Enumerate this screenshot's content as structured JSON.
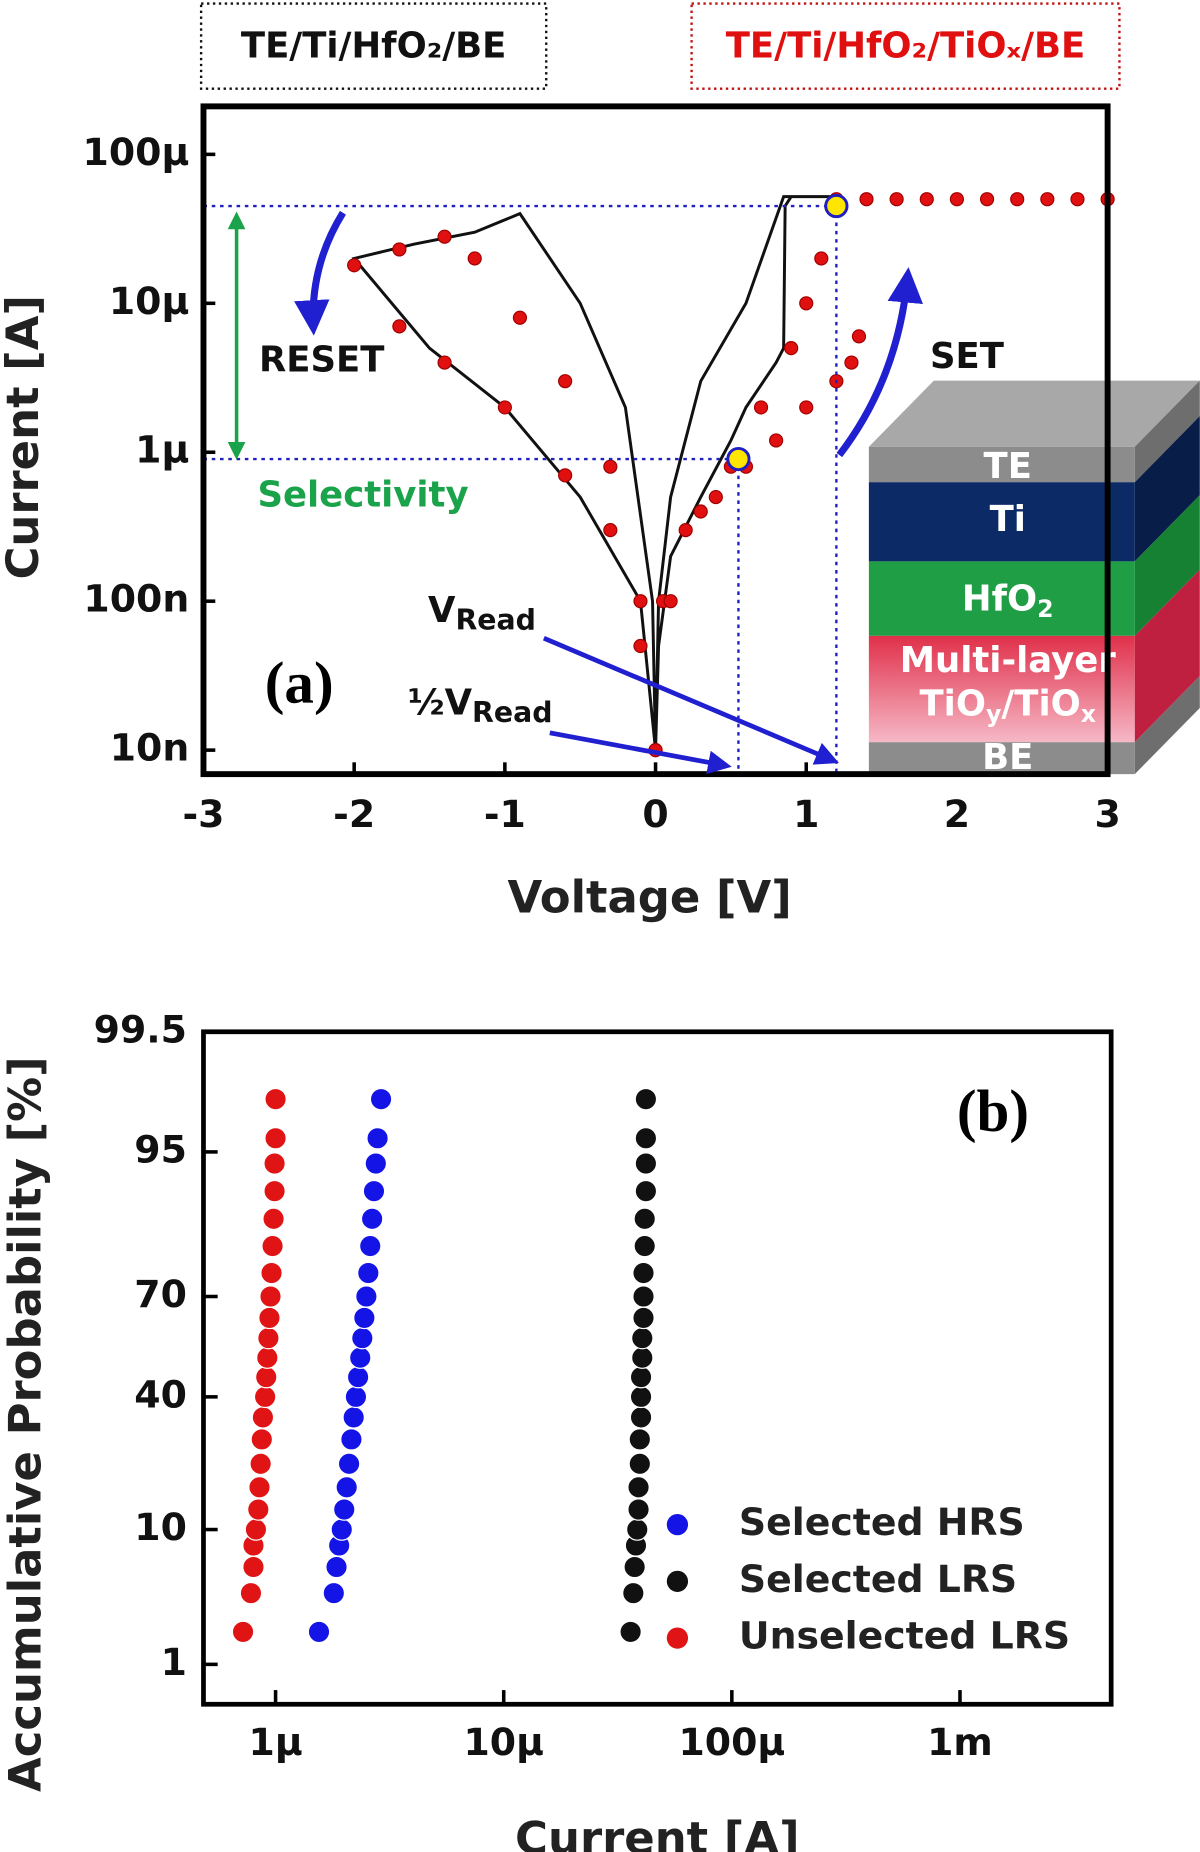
{
  "chart_data": [
    {
      "type": "line",
      "log_y": true,
      "x_label": "Voltage [V]",
      "y_label": "Current [A]",
      "xlim": [
        -3,
        3
      ],
      "xticks": [
        -3,
        -2,
        -1,
        0,
        1,
        2,
        3
      ],
      "ylim": [
        6.9e-09,
        0.00021
      ],
      "yticks": [
        {
          "value": 1e-08,
          "label": "10n"
        },
        {
          "value": 1e-07,
          "label": "100n"
        },
        {
          "value": 1e-06,
          "label": "1μ"
        },
        {
          "value": 1e-05,
          "label": "10μ"
        },
        {
          "value": 0.0001,
          "label": "100μ"
        }
      ],
      "series": [
        {
          "name": "TE/Ti/HfO₂/BE",
          "color": "#111111",
          "style": "line",
          "x": [
            0,
            0.02,
            0.1,
            0.3,
            0.5,
            0.6,
            0.8,
            0.85,
            0.86,
            0.9,
            1.2,
            0.85,
            0.6,
            0.3,
            0.1,
            0.02,
            0,
            -0.02,
            -0.2,
            -0.5,
            -0.9,
            -1.2,
            -1.6,
            -2,
            -1.5,
            -1,
            -0.5,
            -0.1,
            0
          ],
          "values": [
            1e-08,
            5e-08,
            2e-07,
            5e-07,
            1.2e-06,
            2e-06,
            4e-06,
            5e-06,
            4.5e-05,
            5.2e-05,
            5.2e-05,
            5.2e-05,
            1e-05,
            3e-06,
            5e-07,
            1e-07,
            1e-08,
            1e-07,
            2e-06,
            1e-05,
            4e-05,
            3e-05,
            2.5e-05,
            2e-05,
            5e-06,
            2e-06,
            5e-07,
            1e-07,
            1e-08
          ]
        },
        {
          "name": "TE/Ti/HfO₂/TiOₓ/BE",
          "color": "#e01010",
          "style": "markers",
          "x": [
            0,
            0.05,
            0.2,
            0.4,
            0.6,
            0.8,
            1.0,
            1.2,
            1.3,
            1.35,
            1.2,
            1.1,
            1.0,
            0.9,
            0.7,
            0.5,
            0.3,
            0.1,
            1.4,
            1.6,
            1.8,
            2.0,
            2.2,
            2.4,
            2.6,
            2.8,
            3.0,
            -0.1,
            -0.3,
            -0.6,
            -0.9,
            -1.2,
            -1.4,
            -1.7,
            -2,
            -1.7,
            -1.4,
            -1,
            -0.6,
            -0.3,
            -0.1,
            0
          ],
          "values": [
            1e-08,
            1e-07,
            3e-07,
            5e-07,
            8e-07,
            1.2e-06,
            2e-06,
            3e-06,
            4e-06,
            6e-06,
            5e-05,
            2e-05,
            1e-05,
            5e-06,
            2e-06,
            8e-07,
            4e-07,
            1e-07,
            5e-05,
            5e-05,
            5e-05,
            5e-05,
            5e-05,
            5e-05,
            5e-05,
            5e-05,
            5e-05,
            1e-07,
            8e-07,
            3e-06,
            8e-06,
            2e-05,
            2.8e-05,
            2.3e-05,
            1.8e-05,
            7e-06,
            4e-06,
            2e-06,
            7e-07,
            3e-07,
            5e-08,
            1e-08
          ]
        }
      ],
      "highlight_points": {
        "x": [
          1.2,
          0.55
        ],
        "y": [
          4.5e-05,
          9e-07
        ]
      },
      "annotations": {
        "reset": "RESET",
        "set": "SET",
        "selectivity": "Selectivity",
        "panel": "(a)",
        "v_read": [
          "V",
          "Read"
        ],
        "half_v_read": [
          "½V",
          "Read"
        ],
        "stack": [
          [
            "TE"
          ],
          [
            "Ti"
          ],
          [
            "HfO",
            "2"
          ],
          [
            "Multi-layer"
          ],
          [
            "TiO",
            "y",
            "/TiO",
            "x"
          ],
          [
            "BE"
          ]
        ]
      }
    },
    {
      "type": "scatter",
      "log_x": true,
      "probability_y": true,
      "x_label": "Current [A]",
      "y_label": "Accumulative Probability [%]",
      "xlim": [
        4.83e-07,
        0.0046
      ],
      "xticks": [
        {
          "value": 1e-06,
          "label": "1μ"
        },
        {
          "value": 1e-05,
          "label": "10μ"
        },
        {
          "value": 0.0001,
          "label": "100μ"
        },
        {
          "value": 0.001,
          "label": "1m"
        }
      ],
      "ylim": [
        0.42,
        99.5
      ],
      "yticks": [
        1,
        10,
        40,
        70,
        95,
        99.5
      ],
      "annotations": {
        "panel": "(b)"
      },
      "series": [
        {
          "name": "Selected HRS",
          "color": "#1414e6",
          "x": [
            1.55e-06,
            1.8e-06,
            1.85e-06,
            1.9e-06,
            1.95e-06,
            2e-06,
            2.05e-06,
            2.1e-06,
            2.15e-06,
            2.2e-06,
            2.25e-06,
            2.3e-06,
            2.35e-06,
            2.4e-06,
            2.45e-06,
            2.5e-06,
            2.55e-06,
            2.6e-06,
            2.65e-06,
            2.7e-06,
            2.75e-06,
            2.8e-06,
            2.9e-06
          ],
          "values": [
            1.9,
            3.8,
            5.8,
            8,
            10,
            13,
            17,
            22,
            28,
            34,
            40,
            46,
            52,
            58,
            64,
            70,
            76,
            82,
            87,
            91,
            94,
            96,
            98
          ]
        },
        {
          "name": "Selected LRS",
          "color": "#111111",
          "x": [
            3.6e-05,
            3.7e-05,
            3.75e-05,
            3.8e-05,
            3.85e-05,
            3.9e-05,
            3.9e-05,
            3.95e-05,
            3.95e-05,
            4e-05,
            4e-05,
            4e-05,
            4.05e-05,
            4.05e-05,
            4.1e-05,
            4.1e-05,
            4.1e-05,
            4.15e-05,
            4.15e-05,
            4.2e-05,
            4.2e-05,
            4.2e-05,
            4.2e-05
          ],
          "values": [
            1.9,
            3.8,
            5.8,
            8,
            10,
            13,
            17,
            22,
            28,
            34,
            40,
            46,
            52,
            58,
            64,
            70,
            76,
            82,
            87,
            91,
            94,
            96,
            98
          ]
        },
        {
          "name": "Unselected LRS",
          "color": "#e01414",
          "x": [
            7.2e-07,
            7.8e-07,
            8e-07,
            8e-07,
            8.2e-07,
            8.4e-07,
            8.5e-07,
            8.6e-07,
            8.7e-07,
            8.8e-07,
            9e-07,
            9.1e-07,
            9.2e-07,
            9.3e-07,
            9.4e-07,
            9.5e-07,
            9.6e-07,
            9.7e-07,
            9.8e-07,
            9.9e-07,
            9.9e-07,
            1e-06,
            1e-06
          ],
          "values": [
            1.9,
            3.8,
            5.8,
            8,
            10,
            13,
            17,
            22,
            28,
            34,
            40,
            46,
            52,
            58,
            64,
            70,
            76,
            82,
            87,
            91,
            94,
            96,
            98
          ]
        }
      ]
    }
  ]
}
